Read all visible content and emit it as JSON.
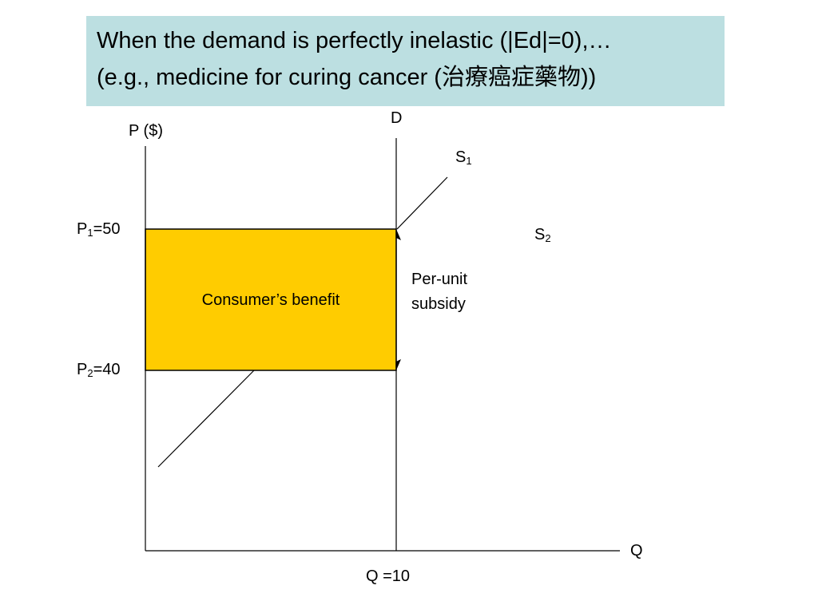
{
  "title": {
    "line1": "When the demand is perfectly inelastic (|Ed|=0),…",
    "line2": "(e.g., medicine for curing cancer (治療癌症藥物))"
  },
  "axes": {
    "y_label": "P ($)",
    "x_label": "Q"
  },
  "curves": {
    "demand_label": "D",
    "supply1_label": "S",
    "supply1_sub": "1",
    "supply2_label": "S",
    "supply2_sub": "2"
  },
  "prices": {
    "p1_pre": "P",
    "p1_sub": "1",
    "p1_post": "=50",
    "p2_pre": "P",
    "p2_sub": "2",
    "p2_post": "=40"
  },
  "quantity_label": "Q =10",
  "shaded_area_label": "Consumer’s benefit",
  "annotation": {
    "line1": "Per-unit",
    "line2": "subsidy"
  },
  "colors": {
    "shaded_area": "#ffcc00",
    "title_background": "#bcdfe1"
  }
}
